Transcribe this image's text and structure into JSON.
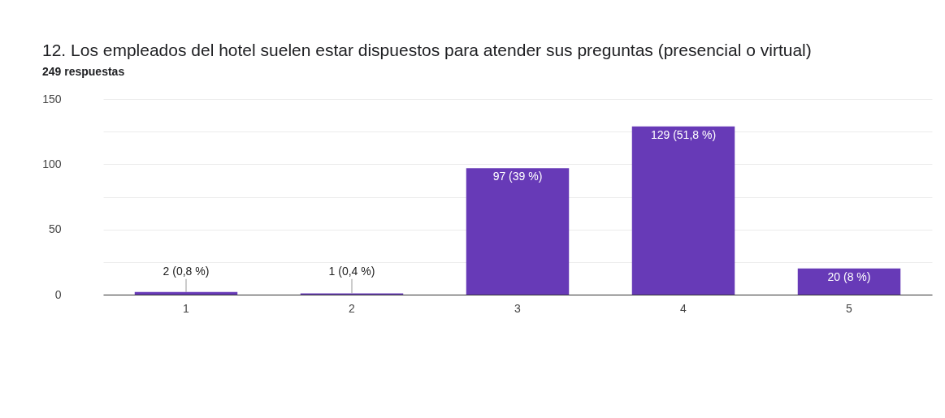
{
  "chart_data": {
    "type": "bar",
    "title": "12. Los empleados del hotel suelen estar dispuestos para atender sus preguntas (presencial o virtual)",
    "subtitle": "249 respuestas",
    "categories": [
      "1",
      "2",
      "3",
      "4",
      "5"
    ],
    "values": [
      2,
      1,
      97,
      129,
      20
    ],
    "value_labels": [
      "2 (0,8 %)",
      "1 (0,4 %)",
      "97 (39 %)",
      "129 (51,8 %)",
      "20 (8 %)"
    ],
    "color": "#673ab7",
    "ylim": [
      0,
      150
    ],
    "yticks": [
      0,
      {
        "value": 25,
        "label": null
      },
      50,
      {
        "value": 75,
        "label": null
      },
      100,
      {
        "value": 125,
        "label": null
      },
      150
    ],
    "grid": "y"
  }
}
